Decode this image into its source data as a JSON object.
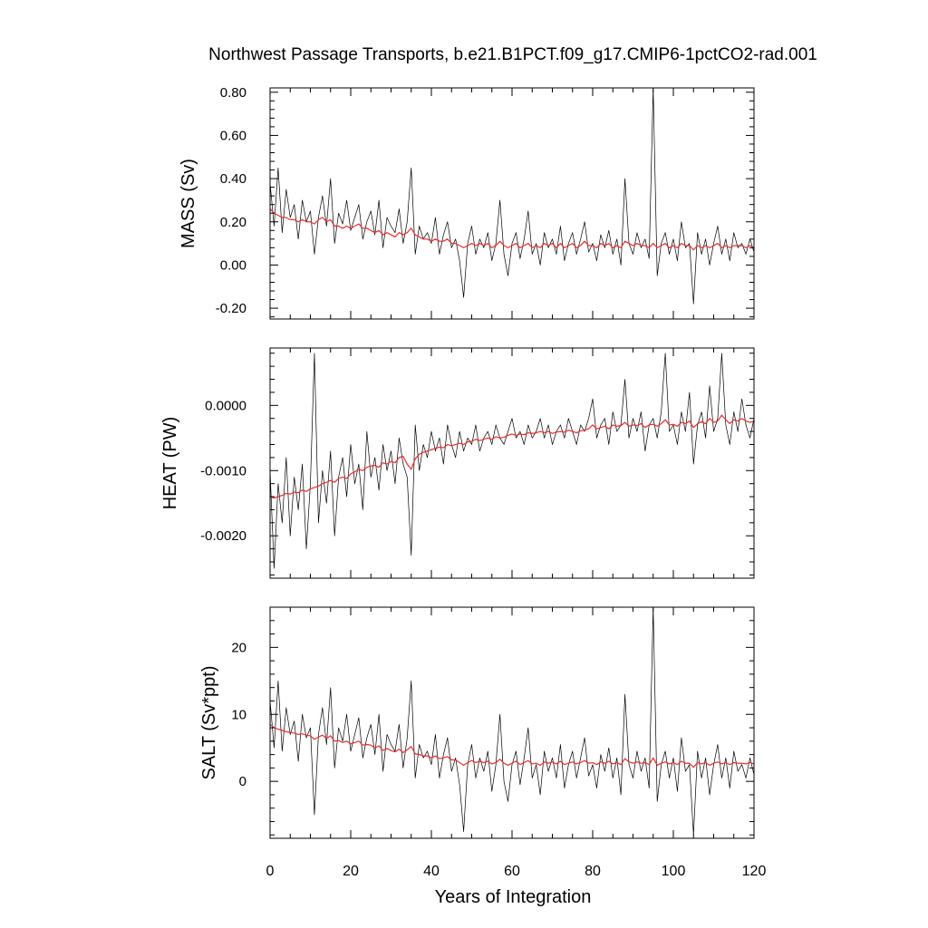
{
  "chart_data": {
    "type": "line",
    "title": "Northwest Passage Transports, b.e21.B1PCT.f09_g17.CMIP6-1pctCO2-rad.001",
    "xlabel": "Years of Integration",
    "xlim": [
      0,
      120
    ],
    "xticks": [
      0,
      20,
      40,
      60,
      80,
      100,
      120
    ],
    "xtick_labels": [
      "0",
      "20",
      "40",
      "60",
      "80",
      "100",
      "120"
    ],
    "grid": false,
    "colors": {
      "raw": "#000000",
      "smooth": "#e03030",
      "axis": "#000000"
    },
    "panels": [
      {
        "ylabel": "MASS (Sv)",
        "ylim": [
          -0.25,
          0.82
        ],
        "yticks": [
          -0.2,
          0.0,
          0.2,
          0.4,
          0.6,
          0.8
        ],
        "ytick_labels": [
          "-0.20",
          "0.00",
          "0.20",
          "0.40",
          "0.60",
          "0.80"
        ],
        "series": [
          {
            "values": [
              0.38,
              0.18,
              0.45,
              0.15,
              0.35,
              0.22,
              0.28,
              0.12,
              0.3,
              0.2,
              0.25,
              0.05,
              0.22,
              0.32,
              0.18,
              0.4,
              0.1,
              0.24,
              0.19,
              0.3,
              0.16,
              0.22,
              0.28,
              0.12,
              0.2,
              0.25,
              0.14,
              0.3,
              0.08,
              0.22,
              0.18,
              0.15,
              0.26,
              0.1,
              0.2,
              0.45,
              0.05,
              0.18,
              0.12,
              0.15,
              0.1,
              0.22,
              0.05,
              0.14,
              0.2,
              0.08,
              0.12,
              0.02,
              -0.15,
              0.1,
              0.18,
              0.05,
              0.12,
              0.08,
              0.15,
              0.02,
              0.1,
              0.3,
              0.05,
              -0.05,
              0.1,
              0.15,
              0.03,
              0.12,
              0.25,
              0.05,
              0.1,
              0.0,
              0.15,
              0.08,
              0.12,
              0.05,
              0.18,
              0.02,
              0.1,
              0.15,
              0.05,
              0.12,
              0.2,
              0.06,
              0.1,
              0.02,
              0.14,
              0.08,
              0.16,
              0.05,
              0.12,
              0.0,
              0.4,
              0.1,
              0.05,
              0.15,
              0.08,
              0.12,
              0.03,
              0.82,
              -0.05,
              0.1,
              0.15,
              0.05,
              0.12,
              0.02,
              0.2,
              0.08,
              0.1,
              -0.18,
              0.15,
              0.05,
              0.12,
              0.0,
              0.1,
              0.18,
              0.05,
              0.12,
              0.02,
              0.15,
              0.08,
              0.1,
              0.05,
              0.12,
              0.06
            ]
          },
          {
            "values": [
              0.26,
              0.24,
              0.23,
              0.22,
              0.22,
              0.21,
              0.21,
              0.2,
              0.21,
              0.2,
              0.2,
              0.19,
              0.21,
              0.22,
              0.2,
              0.21,
              0.18,
              0.18,
              0.17,
              0.18,
              0.17,
              0.18,
              0.19,
              0.17,
              0.17,
              0.16,
              0.15,
              0.16,
              0.14,
              0.15,
              0.14,
              0.13,
              0.15,
              0.14,
              0.15,
              0.17,
              0.14,
              0.13,
              0.12,
              0.12,
              0.11,
              0.12,
              0.11,
              0.11,
              0.12,
              0.1,
              0.1,
              0.09,
              0.08,
              0.09,
              0.1,
              0.09,
              0.1,
              0.09,
              0.1,
              0.08,
              0.09,
              0.11,
              0.09,
              0.08,
              0.09,
              0.1,
              0.08,
              0.09,
              0.1,
              0.08,
              0.09,
              0.08,
              0.1,
              0.09,
              0.1,
              0.08,
              0.1,
              0.08,
              0.09,
              0.1,
              0.08,
              0.09,
              0.11,
              0.09,
              0.09,
              0.08,
              0.1,
              0.09,
              0.1,
              0.08,
              0.09,
              0.08,
              0.11,
              0.1,
              0.09,
              0.1,
              0.09,
              0.09,
              0.08,
              0.1,
              0.08,
              0.09,
              0.1,
              0.08,
              0.09,
              0.08,
              0.1,
              0.09,
              0.09,
              0.07,
              0.09,
              0.08,
              0.09,
              0.08,
              0.09,
              0.1,
              0.08,
              0.09,
              0.08,
              0.09,
              0.09,
              0.09,
              0.08,
              0.09,
              0.08
            ]
          }
        ]
      },
      {
        "ylabel": "HEAT (PW)",
        "ylim": [
          -0.00265,
          0.00088
        ],
        "yticks": [
          -0.002,
          -0.001,
          0.0
        ],
        "ytick_labels": [
          "-0.0020",
          "-0.0010",
          "0.0000"
        ],
        "series": [
          {
            "values": [
              -0.001,
              -0.0025,
              -0.0012,
              -0.0018,
              -0.0008,
              -0.002,
              -0.0011,
              -0.0016,
              -0.0009,
              -0.0022,
              -0.0012,
              0.0008,
              -0.0018,
              -0.001,
              -0.0015,
              -0.0007,
              -0.002,
              -0.0011,
              -0.0008,
              -0.0014,
              -0.0006,
              -0.0012,
              -0.0009,
              -0.0016,
              -0.0004,
              -0.0011,
              -0.0008,
              -0.0013,
              -0.0006,
              -0.001,
              -0.0007,
              -0.0012,
              -0.0005,
              -0.0009,
              -0.0011,
              -0.0023,
              -0.0003,
              -0.001,
              -0.0006,
              -0.0008,
              -0.0004,
              -0.0007,
              -0.0005,
              -0.0009,
              -0.0003,
              -0.0006,
              -0.0008,
              -0.0004,
              -0.0007,
              -0.0005,
              -0.0006,
              -0.0003,
              -0.0007,
              -0.0005,
              -0.0004,
              -0.0006,
              -0.0003,
              -0.0005,
              -0.0006,
              -0.0004,
              -0.0002,
              -0.0005,
              -0.0004,
              -0.0006,
              -0.0003,
              -0.0005,
              -0.0004,
              -0.0002,
              -0.0005,
              -0.0003,
              -0.0006,
              -0.0004,
              -0.0003,
              -0.0005,
              -0.0002,
              -0.0004,
              -0.0006,
              -0.0003,
              -0.0004,
              -0.0002,
              0.0001,
              -0.0005,
              -0.0003,
              -0.0002,
              -0.0006,
              -0.0001,
              -0.0004,
              -0.0003,
              0.0004,
              -0.0005,
              -0.0002,
              -0.0004,
              -0.0001,
              -0.0007,
              -0.0003,
              -0.0002,
              -0.0005,
              -0.0001,
              0.0008,
              -0.0004,
              -0.0003,
              -0.0006,
              -0.0001,
              -0.0004,
              0.0002,
              -0.0009,
              -0.0003,
              -0.0001,
              -0.0005,
              0.0003,
              -0.0004,
              -0.0002,
              0.0008,
              -0.0003,
              -0.0006,
              -0.0001,
              -0.0004,
              0.0001,
              -0.0003,
              -0.0005,
              -0.0002
            ]
          },
          {
            "values": [
              -0.0014,
              -0.00142,
              -0.0014,
              -0.00138,
              -0.00135,
              -0.00136,
              -0.00133,
              -0.00134,
              -0.0013,
              -0.00132,
              -0.00128,
              -0.00126,
              -0.00124,
              -0.0012,
              -0.00118,
              -0.00115,
              -0.00118,
              -0.00112,
              -0.0011,
              -0.00112,
              -0.00105,
              -0.00102,
              -0.00098,
              -0.001,
              -0.00095,
              -0.00093,
              -0.00092,
              -0.00095,
              -0.00088,
              -0.0009,
              -0.00086,
              -0.00088,
              -0.0008,
              -0.00078,
              -0.0009,
              -0.00098,
              -0.00082,
              -0.00075,
              -0.00072,
              -0.0007,
              -0.00068,
              -0.00066,
              -0.00064,
              -0.00065,
              -0.0006,
              -0.00062,
              -0.0006,
              -0.00058,
              -0.0006,
              -0.00056,
              -0.00055,
              -0.00052,
              -0.00054,
              -0.00052,
              -0.0005,
              -0.00052,
              -0.00048,
              -0.0005,
              -0.00049,
              -0.00046,
              -0.00044,
              -0.00046,
              -0.00044,
              -0.00045,
              -0.00042,
              -0.00043,
              -0.00042,
              -0.0004,
              -0.00042,
              -0.0004,
              -0.00043,
              -0.00041,
              -0.0004,
              -0.00041,
              -0.00038,
              -0.0004,
              -0.00042,
              -0.00039,
              -0.00038,
              -0.00036,
              -0.0003,
              -0.00036,
              -0.00034,
              -0.00032,
              -0.00036,
              -0.0003,
              -0.00032,
              -0.00031,
              -0.00026,
              -0.00032,
              -0.0003,
              -0.00031,
              -0.00028,
              -0.00034,
              -0.0003,
              -0.00029,
              -0.00032,
              -0.00028,
              -0.00022,
              -0.0003,
              -0.00029,
              -0.00032,
              -0.00026,
              -0.00028,
              -0.00024,
              -0.00034,
              -0.00028,
              -0.00025,
              -0.00028,
              -0.0002,
              -0.00026,
              -0.00024,
              -0.00015,
              -0.00022,
              -0.00028,
              -0.00022,
              -0.00024,
              -0.0002,
              -0.00024,
              -0.00026,
              -0.00024
            ]
          }
        ]
      },
      {
        "ylabel": "SALT (Sv*ppt)",
        "ylim": [
          -8.5,
          26
        ],
        "yticks": [
          0,
          10,
          20
        ],
        "ytick_labels": [
          "0",
          "10",
          "20"
        ],
        "series": [
          {
            "values": [
              12.0,
              5.0,
              15.0,
              4.5,
              11.0,
              7.0,
              9.0,
              3.0,
              10.0,
              6.5,
              8.0,
              -5.0,
              7.0,
              11.0,
              5.5,
              14.0,
              2.0,
              8.0,
              6.0,
              10.0,
              4.5,
              7.0,
              9.5,
              3.5,
              6.5,
              8.5,
              4.0,
              10.0,
              1.5,
              7.0,
              5.5,
              4.5,
              8.5,
              2.0,
              6.5,
              15.0,
              0.5,
              5.5,
              3.5,
              4.5,
              2.5,
              7.0,
              0.5,
              4.0,
              6.5,
              1.5,
              3.5,
              -0.5,
              -7.5,
              2.5,
              5.5,
              0.5,
              3.5,
              1.5,
              4.5,
              -1.5,
              2.5,
              10.0,
              0.0,
              -3.0,
              2.5,
              4.5,
              -0.5,
              3.5,
              8.0,
              0.5,
              2.5,
              -2.0,
              4.5,
              1.5,
              3.5,
              0.5,
              5.5,
              -1.0,
              2.5,
              4.5,
              0.5,
              3.5,
              6.5,
              0.8,
              2.5,
              -1.0,
              4.0,
              1.5,
              5.0,
              0.5,
              3.5,
              -2.0,
              13.0,
              2.5,
              0.5,
              4.5,
              1.5,
              3.5,
              -1.0,
              26.0,
              -3.0,
              2.5,
              4.5,
              0.5,
              3.5,
              -1.5,
              6.5,
              1.5,
              2.5,
              -8.0,
              4.5,
              0.5,
              3.5,
              -2.0,
              2.5,
              5.5,
              0.5,
              3.5,
              -1.0,
              4.5,
              1.5,
              2.5,
              0.5,
              3.5,
              1.0
            ]
          },
          {
            "values": [
              8.5,
              8.0,
              7.8,
              7.6,
              7.4,
              7.3,
              7.2,
              7.0,
              7.1,
              6.9,
              6.8,
              6.3,
              6.6,
              6.9,
              6.4,
              6.8,
              6.0,
              6.1,
              5.8,
              6.0,
              5.6,
              5.8,
              6.0,
              5.4,
              5.5,
              5.4,
              5.0,
              5.3,
              4.6,
              4.9,
              4.6,
              4.4,
              4.8,
              4.3,
              4.7,
              5.2,
              4.1,
              4.0,
              3.8,
              3.8,
              3.5,
              3.8,
              3.4,
              3.5,
              3.7,
              3.2,
              3.2,
              2.8,
              2.4,
              2.8,
              3.1,
              2.8,
              3.0,
              2.8,
              3.0,
              2.6,
              2.8,
              3.3,
              2.7,
              2.4,
              2.7,
              3.0,
              2.5,
              2.8,
              3.1,
              2.6,
              2.7,
              2.4,
              2.9,
              2.7,
              2.9,
              2.6,
              3.0,
              2.5,
              2.7,
              2.9,
              2.6,
              2.8,
              3.1,
              2.7,
              2.8,
              2.5,
              2.9,
              2.7,
              3.0,
              2.6,
              2.8,
              2.5,
              3.4,
              2.9,
              2.7,
              2.9,
              2.7,
              2.8,
              2.5,
              3.5,
              2.4,
              2.7,
              2.9,
              2.6,
              2.8,
              2.5,
              3.0,
              2.7,
              2.7,
              2.1,
              2.8,
              2.6,
              2.8,
              2.4,
              2.7,
              2.9,
              2.6,
              2.8,
              2.5,
              2.8,
              2.7,
              2.7,
              2.6,
              2.8,
              2.6
            ]
          }
        ]
      }
    ]
  }
}
